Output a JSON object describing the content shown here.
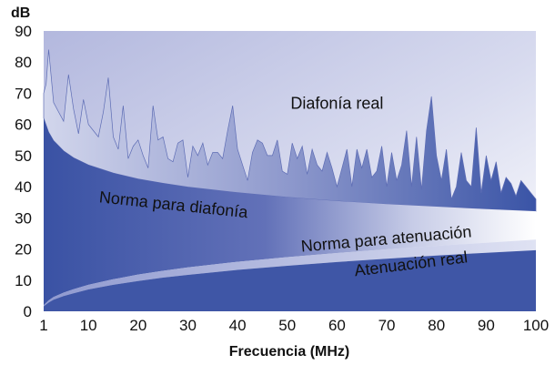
{
  "chart_data": {
    "type": "area",
    "xlabel": "Frecuencia (MHz)",
    "ylabel": "dB",
    "xlim": [
      1,
      100
    ],
    "ylim": [
      0,
      90
    ],
    "x_ticks": [
      1,
      10,
      20,
      30,
      40,
      50,
      60,
      70,
      80,
      90,
      100
    ],
    "y_ticks": [
      0,
      10,
      20,
      30,
      40,
      50,
      60,
      70,
      80,
      90
    ],
    "grid": false,
    "legend": "none",
    "colors": {
      "background_top": "#b3b8de",
      "background_bottom": "#ffffff",
      "series_dark": "#3d55a8",
      "series_light": "#c8cde8",
      "attenuation_band": "#3f56a6"
    },
    "series": [
      {
        "name": "Diafonía real",
        "x": [
          1,
          1.5,
          2,
          3,
          4,
          5,
          6,
          7,
          8,
          9,
          10,
          11,
          12,
          13,
          14,
          15,
          16,
          17,
          18,
          19,
          20,
          21,
          22,
          23,
          24,
          25,
          26,
          27,
          28,
          29,
          30,
          31,
          32,
          33,
          34,
          35,
          36,
          37,
          38,
          39,
          40,
          41,
          42,
          43,
          44,
          45,
          46,
          47,
          48,
          49,
          50,
          51,
          52,
          53,
          54,
          55,
          56,
          57,
          58,
          59,
          60,
          61,
          62,
          63,
          64,
          65,
          66,
          67,
          68,
          69,
          70,
          71,
          72,
          73,
          74,
          75,
          76,
          77,
          78,
          79,
          80,
          81,
          82,
          83,
          84,
          85,
          86,
          87,
          88,
          89,
          90,
          91,
          92,
          93,
          94,
          95,
          96,
          97,
          98,
          99,
          100
        ],
        "values": [
          70,
          73,
          84,
          67,
          64,
          61,
          76,
          65,
          57,
          68,
          60,
          58,
          56,
          64,
          75,
          56,
          52,
          66,
          49,
          53,
          55,
          50,
          46,
          66,
          55,
          56,
          49,
          48,
          54,
          55,
          43,
          53,
          50,
          54,
          47,
          51,
          51,
          49,
          58,
          66,
          52,
          47,
          42,
          51,
          55,
          54,
          50,
          50,
          55,
          45,
          44,
          54,
          49,
          53,
          44,
          52,
          47,
          45,
          51,
          46,
          40,
          46,
          52,
          40,
          52,
          46,
          52,
          43,
          45,
          53,
          40,
          51,
          42,
          47,
          58,
          40,
          56,
          39,
          58,
          69,
          50,
          42,
          52,
          36,
          40,
          51,
          42,
          40,
          59,
          38,
          50,
          42,
          48,
          38,
          43,
          41,
          37,
          42,
          40,
          38,
          36
        ]
      },
      {
        "name": "Norma para diafonía",
        "x": [
          1,
          2,
          3,
          5,
          7,
          10,
          15,
          20,
          25,
          30,
          40,
          50,
          60,
          70,
          80,
          90,
          100
        ],
        "values": [
          62,
          57.5,
          54.8,
          51.5,
          49.3,
          47,
          44.4,
          42.5,
          41.1,
          39.9,
          38.1,
          36.6,
          35.4,
          34.4,
          33.6,
          32.8,
          32.1
        ]
      },
      {
        "name": "Norma para atenuación",
        "x": [
          1,
          2,
          3,
          5,
          7,
          10,
          15,
          20,
          25,
          30,
          40,
          50,
          60,
          70,
          80,
          90,
          100
        ],
        "values": [
          2,
          3.5,
          4.6,
          6,
          7.1,
          8.5,
          10.3,
          11.8,
          13,
          14.1,
          15.9,
          17.4,
          18.7,
          19.9,
          21,
          22,
          23
        ]
      },
      {
        "name": "Atenuación real",
        "x": [
          1,
          2,
          3,
          5,
          7,
          10,
          15,
          20,
          25,
          30,
          40,
          50,
          60,
          70,
          80,
          90,
          100
        ],
        "values": [
          1.6,
          2.8,
          3.7,
          4.9,
          5.8,
          7,
          8.5,
          9.7,
          10.8,
          11.7,
          13.3,
          14.6,
          15.8,
          16.9,
          17.9,
          18.8,
          19.6
        ]
      }
    ],
    "annotations": [
      {
        "text": "Diafonía real",
        "x": 60,
        "y": 65,
        "rotation": 0
      },
      {
        "text": "Norma para diafonía",
        "x": 27,
        "y": 32.5,
        "rotation": 6
      },
      {
        "text": "Norma para atenuación",
        "x": 70,
        "y": 21.5,
        "rotation": -5
      },
      {
        "text": "Atenuación real",
        "x": 75,
        "y": 13.5,
        "rotation": -7
      }
    ]
  }
}
